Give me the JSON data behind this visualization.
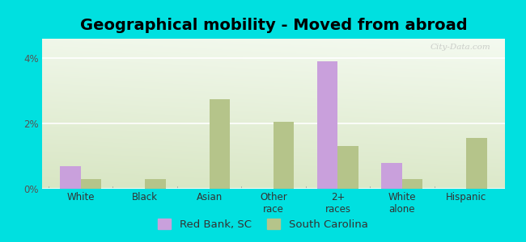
{
  "title": "Geographical mobility - Moved from abroad",
  "categories": [
    "White",
    "Black",
    "Asian",
    "Other\nrace",
    "2+\nraces",
    "White\nalone",
    "Hispanic"
  ],
  "red_bank": [
    0.7,
    0.0,
    0.0,
    0.0,
    3.9,
    0.8,
    0.0
  ],
  "south_carolina": [
    0.3,
    0.3,
    2.75,
    2.05,
    1.3,
    0.3,
    1.55
  ],
  "bar_color_rb": "#c9a0dc",
  "bar_color_sc": "#b5c48a",
  "ylim": [
    0,
    4.6
  ],
  "yticks": [
    0,
    2,
    4
  ],
  "ytick_labels": [
    "0%",
    "2%",
    "4%"
  ],
  "background_color": "#00e0e0",
  "bg_top_left": "#ccddb0",
  "bg_bottom_right": "#f4faf0",
  "legend_rb": "Red Bank, SC",
  "legend_sc": "South Carolina",
  "title_fontsize": 14,
  "tick_fontsize": 8.5,
  "legend_fontsize": 9.5,
  "bar_width": 0.32,
  "watermark": "City-Data.com"
}
